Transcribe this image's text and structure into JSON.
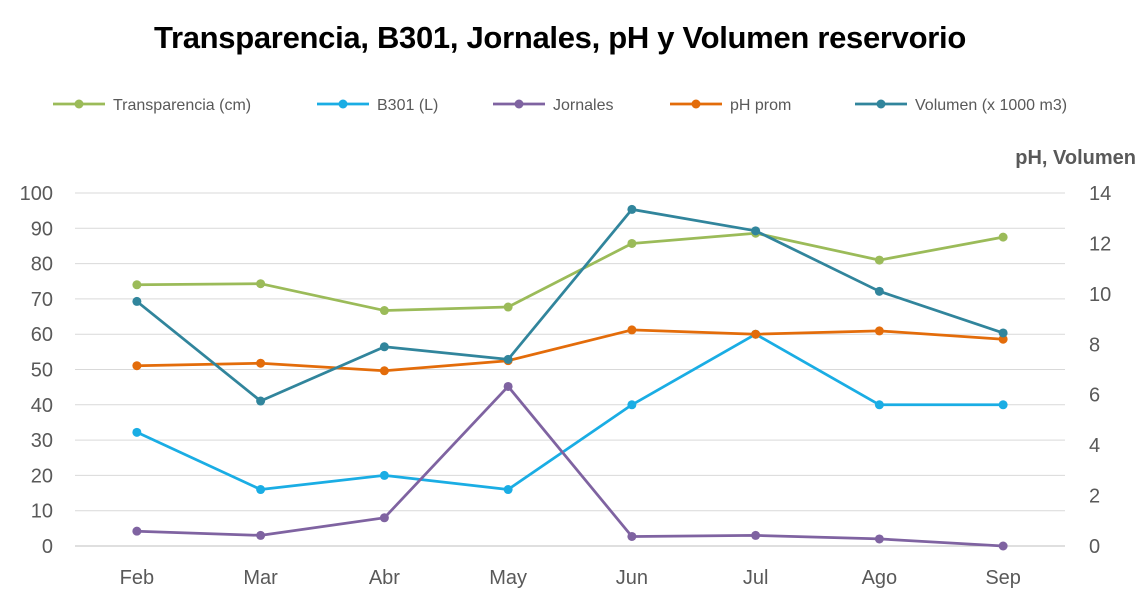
{
  "chart_data": {
    "type": "line",
    "title": "Transparencia, B301, Jornales, pH y Volumen reservorio",
    "categories": [
      "Feb",
      "Mar",
      "Abr",
      "May",
      "Jun",
      "Jul",
      "Ago",
      "Sep"
    ],
    "y_left": {
      "range": [
        0,
        100
      ],
      "ticks": [
        0,
        10,
        20,
        30,
        40,
        50,
        60,
        70,
        80,
        90,
        100
      ]
    },
    "y_right": {
      "label": "pH, Volumen",
      "range": [
        0,
        14
      ],
      "ticks": [
        0,
        2,
        4,
        6,
        8,
        10,
        12,
        14
      ]
    },
    "grid": "horizontal",
    "legend_position": "top",
    "series": [
      {
        "name": "Transparencia (cm)",
        "axis": "left",
        "color": "#9BBB59",
        "values": [
          74,
          74.3,
          66.7,
          67.7,
          85.7,
          88.6,
          81,
          87.5
        ]
      },
      {
        "name": "B301 (L)",
        "axis": "left",
        "color": "#1AADE4",
        "values": [
          32.2,
          16,
          20,
          16,
          40,
          60,
          40,
          40
        ]
      },
      {
        "name": "Jornales",
        "axis": "left",
        "color": "#7F63A1",
        "values": [
          4.2,
          3,
          8,
          45.2,
          2.7,
          3,
          2,
          0
        ]
      },
      {
        "name": "pH prom",
        "axis": "right",
        "color": "#E36C0A",
        "values": [
          7.15,
          7.25,
          6.95,
          7.35,
          8.57,
          8.4,
          8.53,
          8.2
        ]
      },
      {
        "name": "Volumen (x 1000 m3)",
        "axis": "right",
        "color": "#31859C",
        "values": [
          9.7,
          5.75,
          7.9,
          7.4,
          13.35,
          12.5,
          10.1,
          8.45
        ]
      }
    ]
  }
}
